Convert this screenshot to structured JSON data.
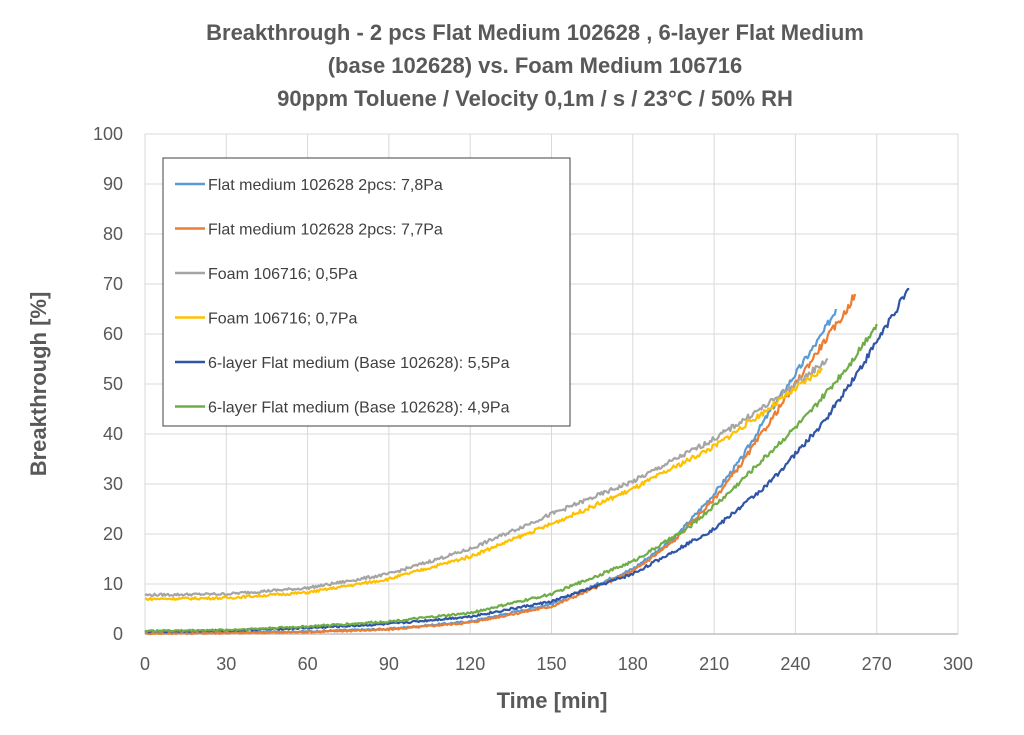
{
  "chart_data": {
    "type": "line",
    "title": [
      "Breakthrough  - 2 pcs Flat Medium 102628 , 6-layer Flat Medium",
      "(base 102628) vs. Foam Medium 106716",
      "90ppm Toluene / Velocity 0,1m / s / 23°C / 50% RH"
    ],
    "xlabel": "Time [min]",
    "ylabel": "Breakthrough [%]",
    "xlim": [
      0,
      300
    ],
    "ylim": [
      0,
      100
    ],
    "xticks": [
      "0",
      "30",
      "60",
      "90",
      "120",
      "150",
      "180",
      "210",
      "240",
      "270",
      "300"
    ],
    "yticks": [
      "0",
      "10",
      "20",
      "30",
      "40",
      "50",
      "60",
      "70",
      "80",
      "90",
      "100"
    ],
    "grid": "vertical-and-horizontal",
    "legend_position": "top-left",
    "series": [
      {
        "name": "Flat medium 102628 2pcs: 7,8Pa",
        "color": "#5b9bd5",
        "points": [
          [
            0,
            0.2
          ],
          [
            30,
            0.3
          ],
          [
            60,
            0.5
          ],
          [
            90,
            1
          ],
          [
            120,
            2.5
          ],
          [
            150,
            6
          ],
          [
            180,
            13
          ],
          [
            195,
            19
          ],
          [
            210,
            28
          ],
          [
            220,
            35
          ],
          [
            230,
            44
          ],
          [
            240,
            52
          ],
          [
            250,
            60
          ],
          [
            255,
            65
          ]
        ]
      },
      {
        "name": "Flat medium 102628 2pcs: 7,7Pa",
        "color": "#ed7d31",
        "points": [
          [
            0,
            0.1
          ],
          [
            30,
            0.2
          ],
          [
            60,
            0.4
          ],
          [
            90,
            0.9
          ],
          [
            120,
            2.3
          ],
          [
            150,
            5.5
          ],
          [
            180,
            12.5
          ],
          [
            195,
            18.5
          ],
          [
            210,
            27
          ],
          [
            220,
            34
          ],
          [
            230,
            42
          ],
          [
            240,
            50
          ],
          [
            250,
            58
          ],
          [
            258,
            64
          ],
          [
            262,
            68
          ]
        ]
      },
      {
        "name": "Foam 106716; 0,5Pa",
        "color": "#a5a5a5",
        "points": [
          [
            0,
            7.8
          ],
          [
            30,
            8
          ],
          [
            60,
            9.2
          ],
          [
            90,
            12
          ],
          [
            120,
            17
          ],
          [
            150,
            24
          ],
          [
            180,
            30.5
          ],
          [
            210,
            39
          ],
          [
            230,
            46
          ],
          [
            245,
            52
          ],
          [
            252,
            55
          ]
        ]
      },
      {
        "name": "Foam 106716; 0,7Pa",
        "color": "#ffc000",
        "points": [
          [
            0,
            7
          ],
          [
            30,
            7.2
          ],
          [
            60,
            8.3
          ],
          [
            90,
            11
          ],
          [
            120,
            15.5
          ],
          [
            150,
            22
          ],
          [
            180,
            29
          ],
          [
            210,
            37.5
          ],
          [
            230,
            45
          ],
          [
            245,
            51
          ],
          [
            250,
            53
          ]
        ]
      },
      {
        "name": "6-layer Flat medium (Base 102628): 5,5Pa",
        "color": "#2f55a4",
        "points": [
          [
            0,
            0.5
          ],
          [
            30,
            0.7
          ],
          [
            60,
            1.2
          ],
          [
            90,
            2
          ],
          [
            120,
            3.5
          ],
          [
            150,
            6.5
          ],
          [
            180,
            12
          ],
          [
            210,
            21
          ],
          [
            230,
            30
          ],
          [
            250,
            42
          ],
          [
            265,
            54
          ],
          [
            275,
            63
          ],
          [
            282,
            69
          ]
        ]
      },
      {
        "name": "6-layer Flat medium (Base 102628): 4,9Pa",
        "color": "#70ad47",
        "points": [
          [
            0,
            0.6
          ],
          [
            30,
            0.8
          ],
          [
            60,
            1.5
          ],
          [
            90,
            2.5
          ],
          [
            120,
            4.2
          ],
          [
            150,
            8
          ],
          [
            180,
            14.5
          ],
          [
            200,
            21
          ],
          [
            215,
            28
          ],
          [
            230,
            36
          ],
          [
            245,
            44
          ],
          [
            260,
            54
          ],
          [
            270,
            62
          ]
        ]
      }
    ]
  }
}
